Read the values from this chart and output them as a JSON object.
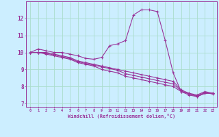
{
  "xlabel": "Windchill (Refroidissement éolien,°C)",
  "background_color": "#cceeff",
  "grid_color": "#aaddcc",
  "line_color": "#993399",
  "xlim": [
    -0.5,
    23.5
  ],
  "ylim": [
    6.8,
    13.0
  ],
  "yticks": [
    7,
    8,
    9,
    10,
    11,
    12
  ],
  "xticks": [
    0,
    1,
    2,
    3,
    4,
    5,
    6,
    7,
    8,
    9,
    10,
    11,
    12,
    13,
    14,
    15,
    16,
    17,
    18,
    19,
    20,
    21,
    22,
    23
  ],
  "curves": [
    [
      10.0,
      10.2,
      10.1,
      10.0,
      10.0,
      9.9,
      9.8,
      9.65,
      9.6,
      9.7,
      10.4,
      10.5,
      10.7,
      12.2,
      12.5,
      12.5,
      12.4,
      10.7,
      8.8,
      7.7,
      7.6,
      7.4,
      7.6,
      7.6
    ],
    [
      10.0,
      10.0,
      10.0,
      9.9,
      9.8,
      9.7,
      9.5,
      9.4,
      9.3,
      9.2,
      9.1,
      9.0,
      8.9,
      8.8,
      8.7,
      8.6,
      8.5,
      8.4,
      8.3,
      7.8,
      7.6,
      7.5,
      7.7,
      7.6
    ],
    [
      10.0,
      10.0,
      9.9,
      9.8,
      9.7,
      9.6,
      9.4,
      9.3,
      9.2,
      9.0,
      8.9,
      8.8,
      8.6,
      8.5,
      8.4,
      8.3,
      8.2,
      8.1,
      8.0,
      7.7,
      7.5,
      7.4,
      7.6,
      7.6
    ],
    [
      10.0,
      10.0,
      9.95,
      9.85,
      9.75,
      9.65,
      9.45,
      9.35,
      9.25,
      9.15,
      9.05,
      8.95,
      8.75,
      8.65,
      8.55,
      8.45,
      8.35,
      8.25,
      8.15,
      7.75,
      7.55,
      7.45,
      7.65,
      7.55
    ]
  ]
}
